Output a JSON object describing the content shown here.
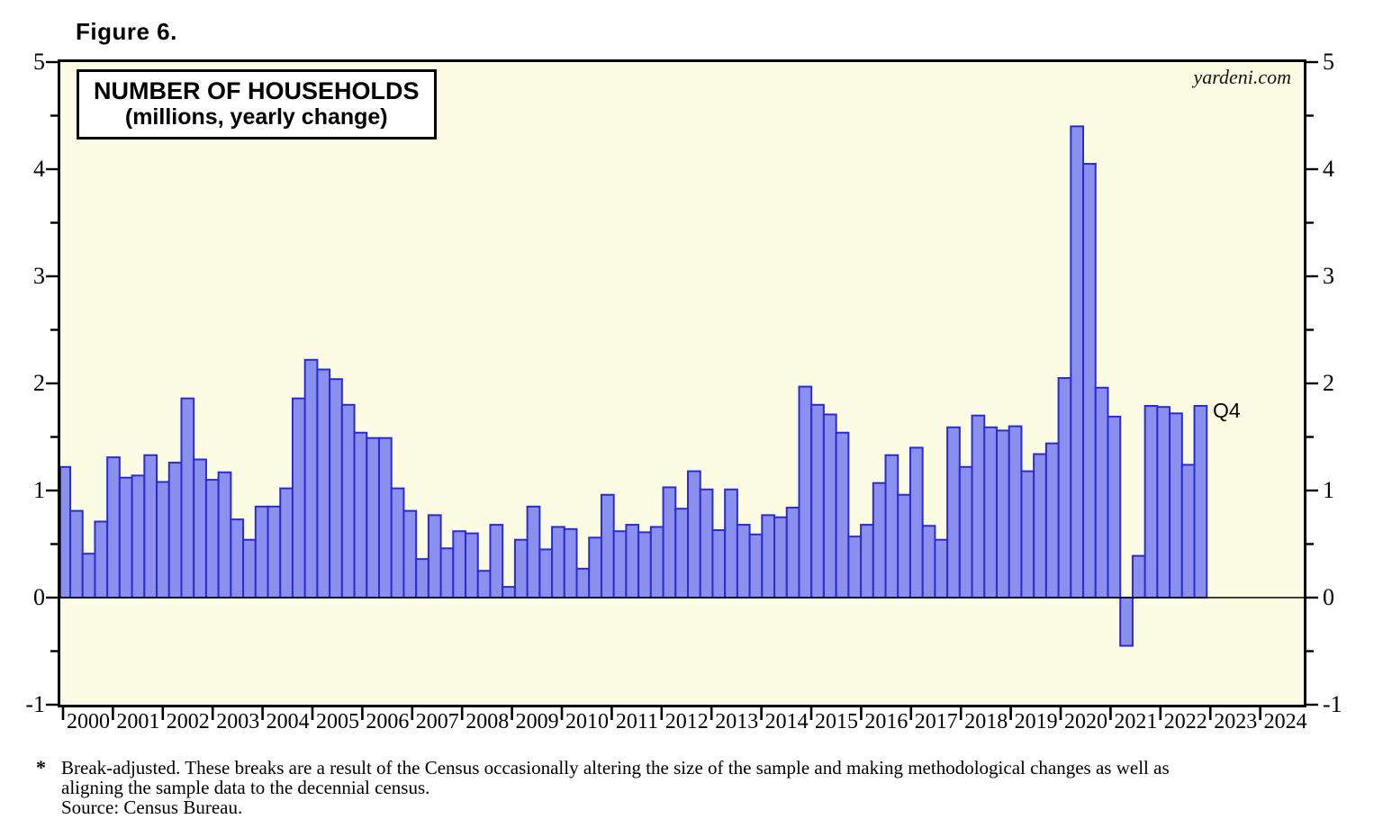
{
  "figure_label": "Figure 6.",
  "title_box": {
    "line1": "NUMBER OF HOUSEHOLDS",
    "line2": "(millions, yearly change)"
  },
  "watermark": "yardeni.com",
  "annotation": "Q4",
  "footnote": {
    "marker": "*",
    "line1": "Break-adjusted. These breaks are a result of the Census occasionally altering the size of the sample and making methodological changes as well as",
    "line2": "aligning the sample data to the decennial census.",
    "line3": "Source: Census Bureau."
  },
  "colors": {
    "bar_fill": "#8A90EE",
    "bar_border": "#2B2BD5",
    "plot_bg": "#FCFCE4",
    "axis": "#000000"
  },
  "chart_data": {
    "type": "bar",
    "title": "NUMBER OF HOUSEHOLDS (millions, yearly change)",
    "frequency": "quarterly",
    "x_start": "1999 Q4",
    "x_end": "2022 Q4",
    "ylim": [
      -1,
      5
    ],
    "y_ticks": [
      5,
      4,
      3,
      2,
      1,
      0,
      -1
    ],
    "y_minor_interval": 0.5,
    "grid": false,
    "legend": "none",
    "x_axis_years": [
      2000,
      2001,
      2002,
      2003,
      2004,
      2005,
      2006,
      2007,
      2008,
      2009,
      2010,
      2011,
      2012,
      2013,
      2014,
      2015,
      2016,
      2017,
      2018,
      2019,
      2020,
      2021,
      2022,
      2023,
      2024
    ],
    "data": [
      {
        "year": 1999,
        "quarters": [
          "Q4"
        ],
        "values": [
          1.22
        ]
      },
      {
        "year": 2000,
        "quarters": [
          "Q1",
          "Q2",
          "Q3",
          "Q4"
        ],
        "values": [
          0.81,
          0.41,
          0.71,
          1.31
        ]
      },
      {
        "year": 2001,
        "quarters": [
          "Q1",
          "Q2",
          "Q3",
          "Q4"
        ],
        "values": [
          1.12,
          1.14,
          1.33,
          1.08
        ]
      },
      {
        "year": 2002,
        "quarters": [
          "Q1",
          "Q2",
          "Q3",
          "Q4"
        ],
        "values": [
          1.26,
          1.86,
          1.29,
          1.1
        ]
      },
      {
        "year": 2003,
        "quarters": [
          "Q1",
          "Q2",
          "Q3",
          "Q4"
        ],
        "values": [
          1.17,
          0.73,
          0.54,
          0.85
        ]
      },
      {
        "year": 2004,
        "quarters": [
          "Q1",
          "Q2",
          "Q3",
          "Q4"
        ],
        "values": [
          0.85,
          1.02,
          1.86,
          2.22
        ]
      },
      {
        "year": 2005,
        "quarters": [
          "Q1",
          "Q2",
          "Q3",
          "Q4"
        ],
        "values": [
          2.13,
          2.04,
          1.8,
          1.54
        ]
      },
      {
        "year": 2006,
        "quarters": [
          "Q1",
          "Q2",
          "Q3",
          "Q4"
        ],
        "values": [
          1.49,
          1.49,
          1.02,
          0.81
        ]
      },
      {
        "year": 2007,
        "quarters": [
          "Q1",
          "Q2",
          "Q3",
          "Q4"
        ],
        "values": [
          0.36,
          0.77,
          0.46,
          0.62
        ]
      },
      {
        "year": 2008,
        "quarters": [
          "Q1",
          "Q2",
          "Q3",
          "Q4"
        ],
        "values": [
          0.6,
          0.25,
          0.68,
          0.1
        ]
      },
      {
        "year": 2009,
        "quarters": [
          "Q1",
          "Q2",
          "Q3",
          "Q4"
        ],
        "values": [
          0.54,
          0.85,
          0.45,
          0.66
        ]
      },
      {
        "year": 2010,
        "quarters": [
          "Q1",
          "Q2",
          "Q3",
          "Q4"
        ],
        "values": [
          0.64,
          0.27,
          0.56,
          0.96
        ]
      },
      {
        "year": 2011,
        "quarters": [
          "Q1",
          "Q2",
          "Q3",
          "Q4"
        ],
        "values": [
          0.62,
          0.68,
          0.61,
          0.66
        ]
      },
      {
        "year": 2012,
        "quarters": [
          "Q1",
          "Q2",
          "Q3",
          "Q4"
        ],
        "values": [
          1.03,
          0.83,
          1.18,
          1.01
        ]
      },
      {
        "year": 2013,
        "quarters": [
          "Q1",
          "Q2",
          "Q3",
          "Q4"
        ],
        "values": [
          0.63,
          1.01,
          0.68,
          0.59
        ]
      },
      {
        "year": 2014,
        "quarters": [
          "Q1",
          "Q2",
          "Q3",
          "Q4"
        ],
        "values": [
          0.77,
          0.75,
          0.84,
          1.97
        ]
      },
      {
        "year": 2015,
        "quarters": [
          "Q1",
          "Q2",
          "Q3",
          "Q4"
        ],
        "values": [
          1.8,
          1.71,
          1.54,
          0.57
        ]
      },
      {
        "year": 2016,
        "quarters": [
          "Q1",
          "Q2",
          "Q3",
          "Q4"
        ],
        "values": [
          0.68,
          1.07,
          1.33,
          0.96
        ]
      },
      {
        "year": 2017,
        "quarters": [
          "Q1",
          "Q2",
          "Q3",
          "Q4"
        ],
        "values": [
          1.4,
          0.67,
          0.54,
          1.59
        ]
      },
      {
        "year": 2018,
        "quarters": [
          "Q1",
          "Q2",
          "Q3",
          "Q4"
        ],
        "values": [
          1.22,
          1.7,
          1.59,
          1.56
        ]
      },
      {
        "year": 2019,
        "quarters": [
          "Q1",
          "Q2",
          "Q3",
          "Q4"
        ],
        "values": [
          1.6,
          1.18,
          1.34,
          1.44
        ]
      },
      {
        "year": 2020,
        "quarters": [
          "Q1",
          "Q2",
          "Q3",
          "Q4"
        ],
        "values": [
          2.05,
          4.4,
          4.05,
          1.96
        ]
      },
      {
        "year": 2021,
        "quarters": [
          "Q1",
          "Q2",
          "Q3",
          "Q4"
        ],
        "values": [
          1.69,
          -0.45,
          0.39,
          1.79
        ]
      },
      {
        "year": 2022,
        "quarters": [
          "Q1",
          "Q2",
          "Q3",
          "Q4"
        ],
        "values": [
          1.78,
          1.72,
          1.24,
          1.79
        ]
      }
    ]
  }
}
